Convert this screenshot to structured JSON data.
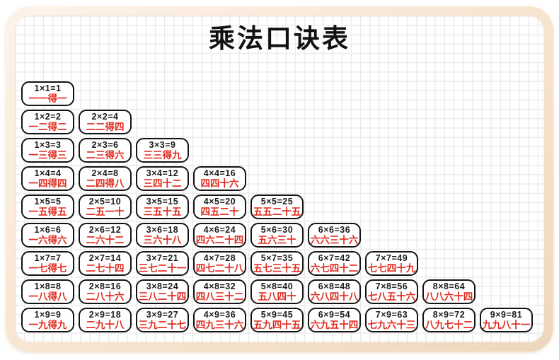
{
  "page": {
    "title": "乘法口诀表"
  },
  "colors": {
    "equation_text": "#1b1b1b",
    "mnemonic_text": "#e0271b",
    "cell_border": "#141414",
    "cell_background": "#ffffff",
    "frame_cream": "#f6e3d0",
    "grid_line": "#ececec"
  },
  "table": {
    "rows": [
      [
        {
          "equation": "1×1=1",
          "mnemonic": "一一得一"
        }
      ],
      [
        {
          "equation": "1×2=2",
          "mnemonic": "一二得二"
        },
        {
          "equation": "2×2=4",
          "mnemonic": "二二得四"
        }
      ],
      [
        {
          "equation": "1×3=3",
          "mnemonic": "一三得三"
        },
        {
          "equation": "2×3=6",
          "mnemonic": "二三得六"
        },
        {
          "equation": "3×3=9",
          "mnemonic": "三三得九"
        }
      ],
      [
        {
          "equation": "1×4=4",
          "mnemonic": "一四得四"
        },
        {
          "equation": "2×4=8",
          "mnemonic": "二四得八"
        },
        {
          "equation": "3×4=12",
          "mnemonic": "三四十二"
        },
        {
          "equation": "4×4=16",
          "mnemonic": "四四十六"
        }
      ],
      [
        {
          "equation": "1×5=5",
          "mnemonic": "一五得五"
        },
        {
          "equation": "2×5=10",
          "mnemonic": "二五一十"
        },
        {
          "equation": "3×5=15",
          "mnemonic": "三五十五"
        },
        {
          "equation": "4×5=20",
          "mnemonic": "四五二十"
        },
        {
          "equation": "5×5=25",
          "mnemonic": "五五二十五"
        }
      ],
      [
        {
          "equation": "1×6=6",
          "mnemonic": "一六得六"
        },
        {
          "equation": "2×6=12",
          "mnemonic": "二六十二"
        },
        {
          "equation": "3×6=18",
          "mnemonic": "三六十八"
        },
        {
          "equation": "4×6=24",
          "mnemonic": "四六二十四"
        },
        {
          "equation": "5×6=30",
          "mnemonic": "五六三十"
        },
        {
          "equation": "6×6=36",
          "mnemonic": "六六三十六"
        }
      ],
      [
        {
          "equation": "1×7=7",
          "mnemonic": "一七得七"
        },
        {
          "equation": "2×7=14",
          "mnemonic": "二七十四"
        },
        {
          "equation": "3×7=21",
          "mnemonic": "三七二十一"
        },
        {
          "equation": "4×7=28",
          "mnemonic": "四七二十八"
        },
        {
          "equation": "5×7=35",
          "mnemonic": "五七三十五"
        },
        {
          "equation": "6×7=42",
          "mnemonic": "六七四十二"
        },
        {
          "equation": "7×7=49",
          "mnemonic": "七七四十九"
        }
      ],
      [
        {
          "equation": "1×8=8",
          "mnemonic": "一八得八"
        },
        {
          "equation": "2×8=16",
          "mnemonic": "二八十六"
        },
        {
          "equation": "3×8=24",
          "mnemonic": "三八二十四"
        },
        {
          "equation": "4×8=32",
          "mnemonic": "四八三十二"
        },
        {
          "equation": "5×8=40",
          "mnemonic": "五八四十"
        },
        {
          "equation": "6×8=48",
          "mnemonic": "六八四十八"
        },
        {
          "equation": "7×8=56",
          "mnemonic": "七八五十六"
        },
        {
          "equation": "8×8=64",
          "mnemonic": "八八六十四"
        }
      ],
      [
        {
          "equation": "1×9=9",
          "mnemonic": "一九得九"
        },
        {
          "equation": "2×9=18",
          "mnemonic": "二九十八"
        },
        {
          "equation": "3×9=27",
          "mnemonic": "三九二十七"
        },
        {
          "equation": "4×9=36",
          "mnemonic": "四九三十六"
        },
        {
          "equation": "5×9=45",
          "mnemonic": "五九四十五"
        },
        {
          "equation": "6×9=54",
          "mnemonic": "六九五十四"
        },
        {
          "equation": "7×9=63",
          "mnemonic": "七九六十三"
        },
        {
          "equation": "8×9=72",
          "mnemonic": "八九七十二"
        },
        {
          "equation": "9×9=81",
          "mnemonic": "九九八十一"
        }
      ]
    ]
  }
}
